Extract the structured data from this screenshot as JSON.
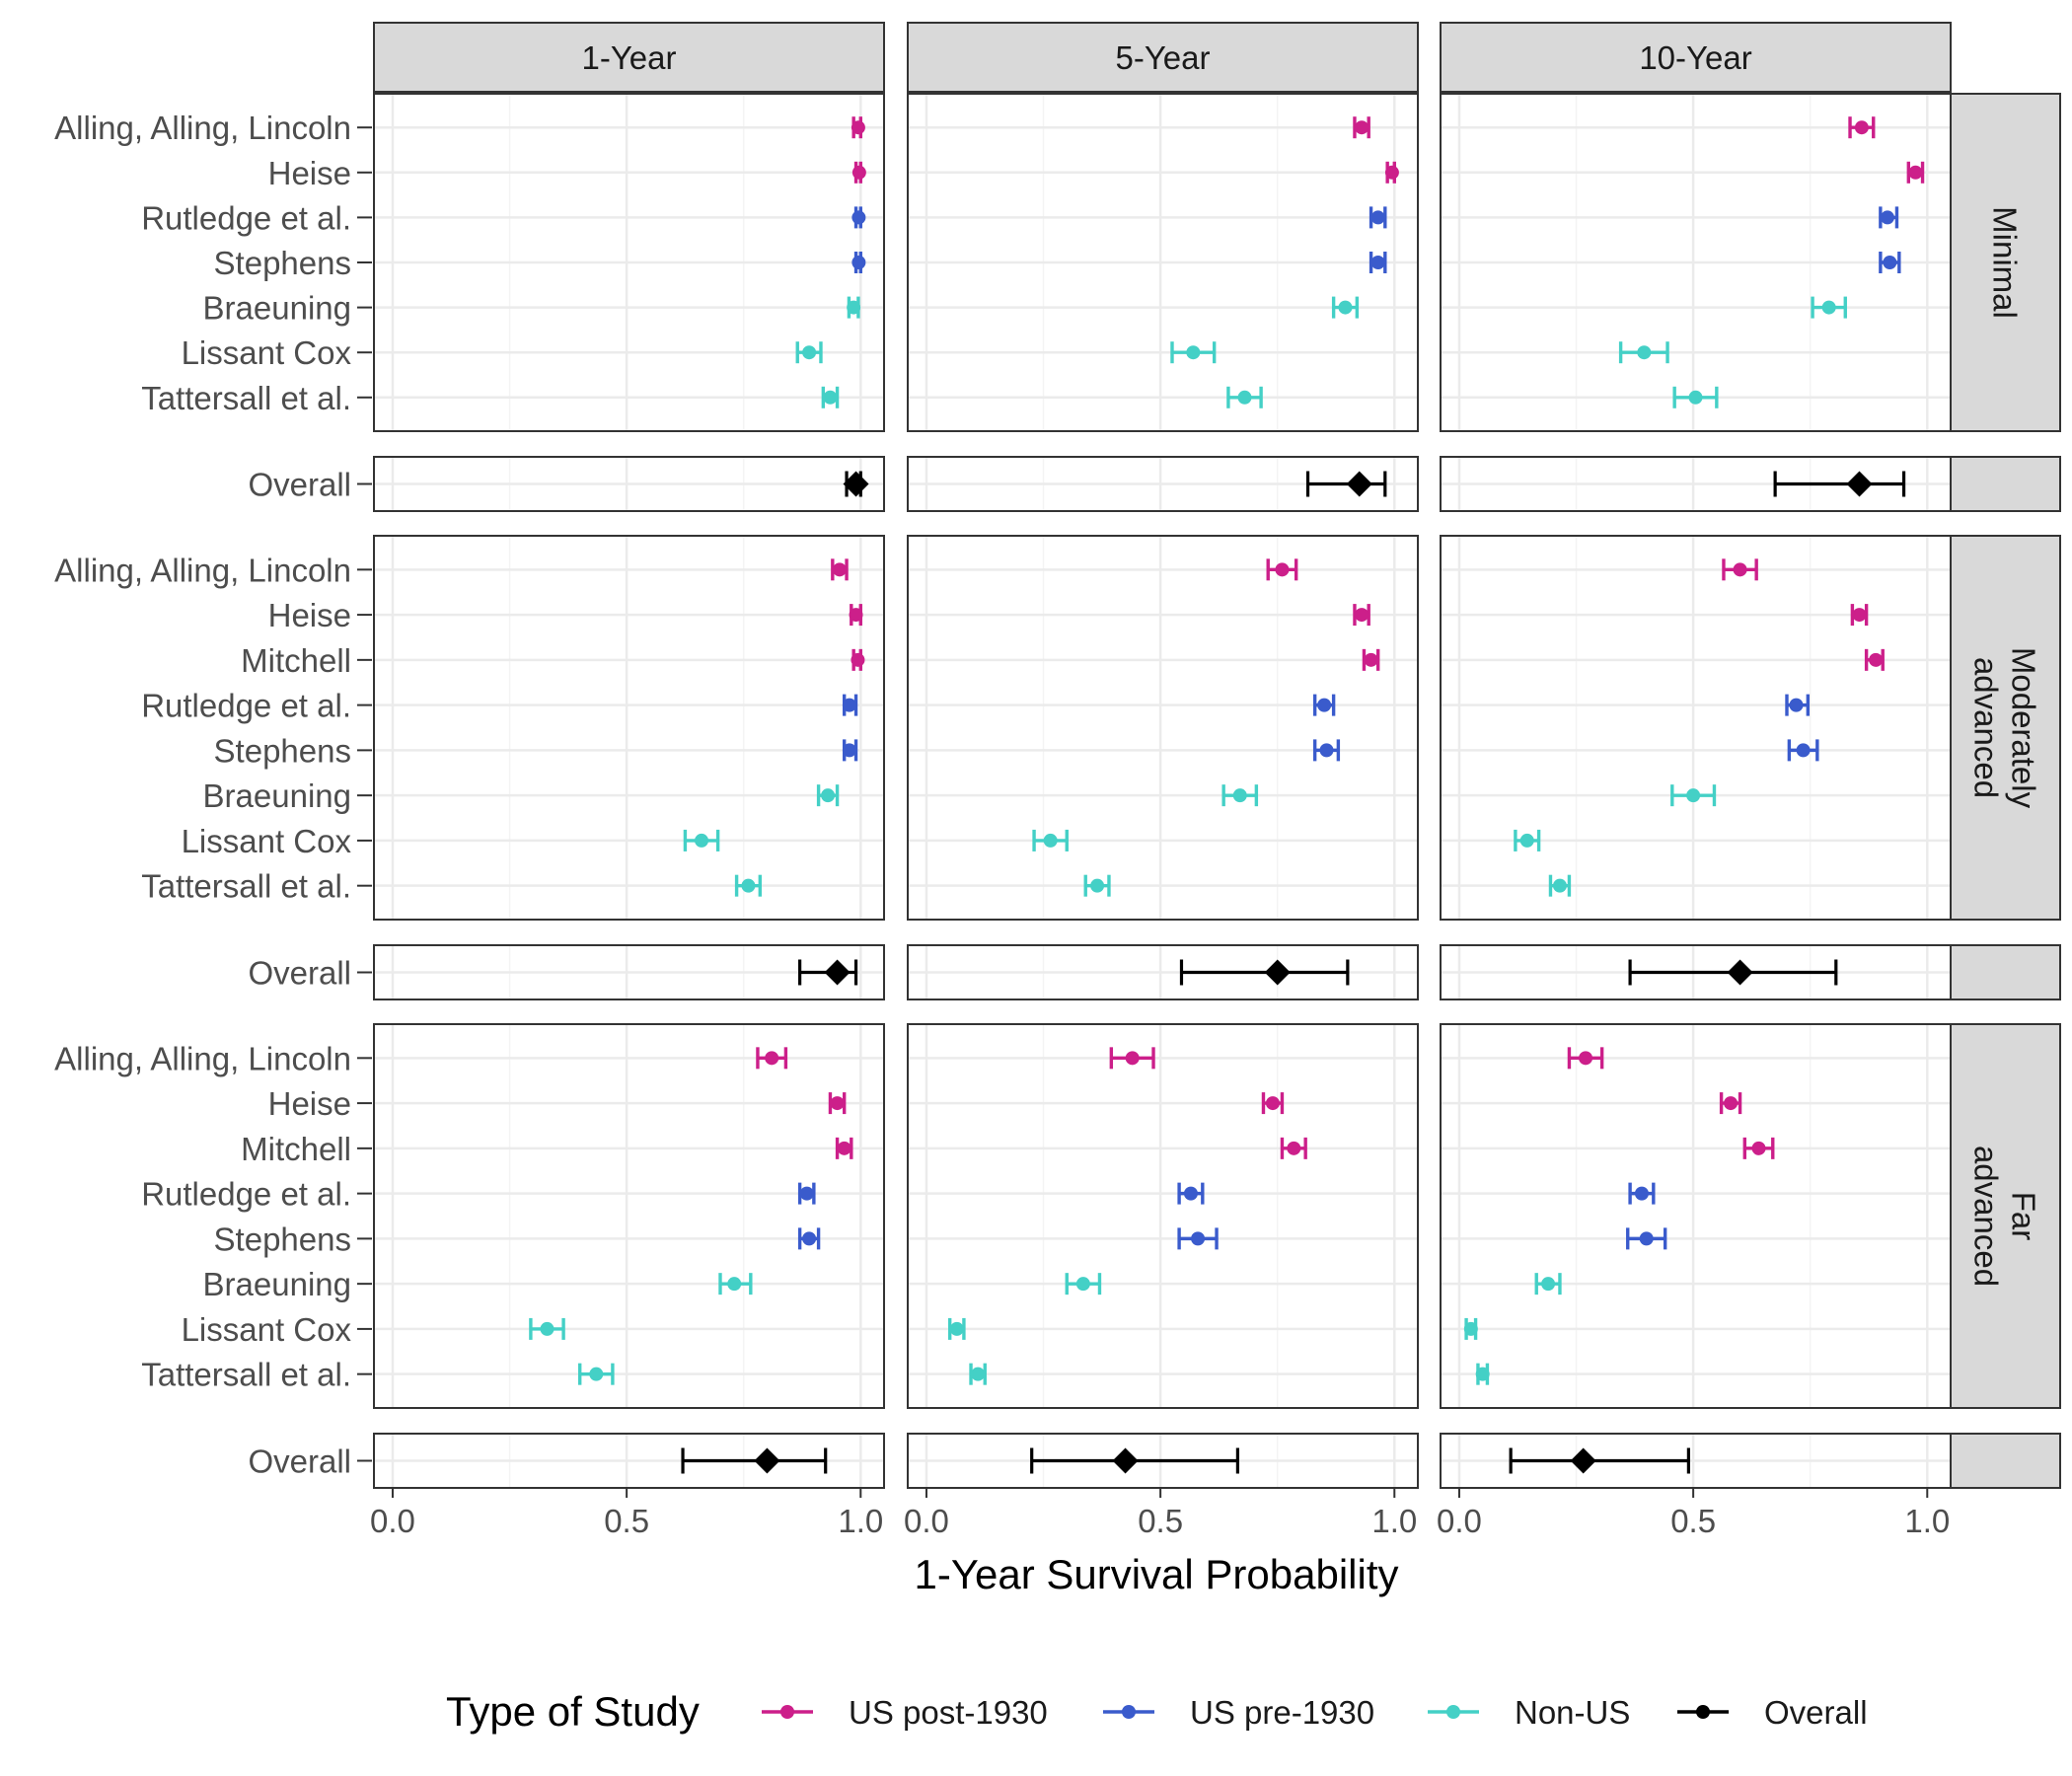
{
  "chart_data": {
    "type": "forest",
    "xlabel": "1-Year Survival Probability",
    "xlim": [
      -0.04,
      1.05
    ],
    "xticks": [
      "0.0",
      "0.5",
      "1.0"
    ],
    "xtick_values": [
      0,
      0.5,
      1.0
    ],
    "grid": true,
    "columns": [
      "1-Year",
      "5-Year",
      "10-Year"
    ],
    "legend": {
      "title": "Type of Study",
      "position": "bottom",
      "items": [
        {
          "label": "US post-1930",
          "color": "#cc1f8a"
        },
        {
          "label": "US pre-1930",
          "color": "#3a5bcc"
        },
        {
          "label": "Non-US",
          "color": "#44d0c6"
        },
        {
          "label": "Overall",
          "color": "#000000"
        }
      ]
    },
    "colors": {
      "US post-1930": "#cc1f8a",
      "US pre-1930": "#3a5bcc",
      "Non-US": "#44d0c6",
      "Overall": "#000000"
    },
    "rows": [
      {
        "label": "Minimal",
        "studies": [
          {
            "name": "Alling, Alling, Lincoln",
            "type": "US post-1930",
            "values": [
              {
                "est": 0.995,
                "lo": 0.985,
                "hi": 1.0
              },
              {
                "est": 0.93,
                "lo": 0.915,
                "hi": 0.945
              },
              {
                "est": 0.86,
                "lo": 0.835,
                "hi": 0.885
              }
            ]
          },
          {
            "name": "Heise",
            "type": "US post-1930",
            "values": [
              {
                "est": 0.997,
                "lo": 0.99,
                "hi": 1.0
              },
              {
                "est": 0.995,
                "lo": 0.985,
                "hi": 1.0
              },
              {
                "est": 0.975,
                "lo": 0.96,
                "hi": 0.99
              }
            ]
          },
          {
            "name": "Rutledge et al.",
            "type": "US pre-1930",
            "values": [
              {
                "est": 0.996,
                "lo": 0.99,
                "hi": 1.0
              },
              {
                "est": 0.965,
                "lo": 0.95,
                "hi": 0.98
              },
              {
                "est": 0.915,
                "lo": 0.9,
                "hi": 0.935
              }
            ]
          },
          {
            "name": "Stephens",
            "type": "US pre-1930",
            "values": [
              {
                "est": 0.996,
                "lo": 0.99,
                "hi": 1.0
              },
              {
                "est": 0.965,
                "lo": 0.95,
                "hi": 0.98
              },
              {
                "est": 0.92,
                "lo": 0.9,
                "hi": 0.94
              }
            ]
          },
          {
            "name": "Braeuning",
            "type": "Non-US",
            "values": [
              {
                "est": 0.985,
                "lo": 0.975,
                "hi": 0.995
              },
              {
                "est": 0.895,
                "lo": 0.87,
                "hi": 0.92
              },
              {
                "est": 0.79,
                "lo": 0.755,
                "hi": 0.825
              }
            ]
          },
          {
            "name": "Lissant Cox",
            "type": "Non-US",
            "values": [
              {
                "est": 0.89,
                "lo": 0.865,
                "hi": 0.915
              },
              {
                "est": 0.57,
                "lo": 0.525,
                "hi": 0.615
              },
              {
                "est": 0.395,
                "lo": 0.345,
                "hi": 0.445
              }
            ]
          },
          {
            "name": "Tattersall et al.",
            "type": "Non-US",
            "values": [
              {
                "est": 0.935,
                "lo": 0.92,
                "hi": 0.95
              },
              {
                "est": 0.68,
                "lo": 0.645,
                "hi": 0.715
              },
              {
                "est": 0.505,
                "lo": 0.46,
                "hi": 0.55
              }
            ]
          }
        ],
        "overall": [
          {
            "est": 0.99,
            "lo": 0.97,
            "hi": 1.0
          },
          {
            "est": 0.925,
            "lo": 0.815,
            "hi": 0.98
          },
          {
            "est": 0.855,
            "lo": 0.675,
            "hi": 0.95
          }
        ]
      },
      {
        "label": "Moderately advanced",
        "label_lines": [
          "Moderately",
          "advanced"
        ],
        "studies": [
          {
            "name": "Alling, Alling, Lincoln",
            "type": "US post-1930",
            "values": [
              {
                "est": 0.955,
                "lo": 0.94,
                "hi": 0.97
              },
              {
                "est": 0.76,
                "lo": 0.73,
                "hi": 0.79
              },
              {
                "est": 0.6,
                "lo": 0.565,
                "hi": 0.635
              }
            ]
          },
          {
            "name": "Heise",
            "type": "US post-1930",
            "values": [
              {
                "est": 0.99,
                "lo": 0.98,
                "hi": 1.0
              },
              {
                "est": 0.93,
                "lo": 0.915,
                "hi": 0.945
              },
              {
                "est": 0.855,
                "lo": 0.84,
                "hi": 0.87
              }
            ]
          },
          {
            "name": "Mitchell",
            "type": "US post-1930",
            "values": [
              {
                "est": 0.994,
                "lo": 0.985,
                "hi": 1.0
              },
              {
                "est": 0.95,
                "lo": 0.935,
                "hi": 0.965
              },
              {
                "est": 0.89,
                "lo": 0.87,
                "hi": 0.905
              }
            ]
          },
          {
            "name": "Rutledge et al.",
            "type": "US pre-1930",
            "values": [
              {
                "est": 0.976,
                "lo": 0.965,
                "hi": 0.99
              },
              {
                "est": 0.85,
                "lo": 0.83,
                "hi": 0.87
              },
              {
                "est": 0.72,
                "lo": 0.7,
                "hi": 0.745
              }
            ]
          },
          {
            "name": "Stephens",
            "type": "US pre-1930",
            "values": [
              {
                "est": 0.976,
                "lo": 0.965,
                "hi": 0.99
              },
              {
                "est": 0.855,
                "lo": 0.83,
                "hi": 0.88
              },
              {
                "est": 0.735,
                "lo": 0.705,
                "hi": 0.765
              }
            ]
          },
          {
            "name": "Braeuning",
            "type": "Non-US",
            "values": [
              {
                "est": 0.93,
                "lo": 0.91,
                "hi": 0.95
              },
              {
                "est": 0.67,
                "lo": 0.635,
                "hi": 0.705
              },
              {
                "est": 0.5,
                "lo": 0.455,
                "hi": 0.545
              }
            ]
          },
          {
            "name": "Lissant Cox",
            "type": "Non-US",
            "values": [
              {
                "est": 0.66,
                "lo": 0.625,
                "hi": 0.695
              },
              {
                "est": 0.265,
                "lo": 0.23,
                "hi": 0.3
              },
              {
                "est": 0.145,
                "lo": 0.12,
                "hi": 0.17
              }
            ]
          },
          {
            "name": "Tattersall et al.",
            "type": "Non-US",
            "values": [
              {
                "est": 0.76,
                "lo": 0.735,
                "hi": 0.785
              },
              {
                "est": 0.365,
                "lo": 0.34,
                "hi": 0.39
              },
              {
                "est": 0.215,
                "lo": 0.195,
                "hi": 0.235
              }
            ]
          }
        ],
        "overall": [
          {
            "est": 0.95,
            "lo": 0.87,
            "hi": 0.99
          },
          {
            "est": 0.75,
            "lo": 0.545,
            "hi": 0.9
          },
          {
            "est": 0.6,
            "lo": 0.365,
            "hi": 0.805
          }
        ]
      },
      {
        "label": "Far advanced",
        "label_lines": [
          "Far",
          "advanced"
        ],
        "studies": [
          {
            "name": "Alling, Alling, Lincoln",
            "type": "US post-1930",
            "values": [
              {
                "est": 0.81,
                "lo": 0.78,
                "hi": 0.84
              },
              {
                "est": 0.44,
                "lo": 0.395,
                "hi": 0.485
              },
              {
                "est": 0.27,
                "lo": 0.235,
                "hi": 0.305
              }
            ]
          },
          {
            "name": "Heise",
            "type": "US post-1930",
            "values": [
              {
                "est": 0.95,
                "lo": 0.935,
                "hi": 0.965
              },
              {
                "est": 0.74,
                "lo": 0.72,
                "hi": 0.76
              },
              {
                "est": 0.58,
                "lo": 0.56,
                "hi": 0.6
              }
            ]
          },
          {
            "name": "Mitchell",
            "type": "US post-1930",
            "values": [
              {
                "est": 0.965,
                "lo": 0.95,
                "hi": 0.98
              },
              {
                "est": 0.785,
                "lo": 0.76,
                "hi": 0.81
              },
              {
                "est": 0.64,
                "lo": 0.61,
                "hi": 0.67
              }
            ]
          },
          {
            "name": "Rutledge et al.",
            "type": "US pre-1930",
            "values": [
              {
                "est": 0.885,
                "lo": 0.87,
                "hi": 0.9
              },
              {
                "est": 0.565,
                "lo": 0.54,
                "hi": 0.59
              },
              {
                "est": 0.39,
                "lo": 0.365,
                "hi": 0.415
              }
            ]
          },
          {
            "name": "Stephens",
            "type": "US pre-1930",
            "values": [
              {
                "est": 0.89,
                "lo": 0.87,
                "hi": 0.91
              },
              {
                "est": 0.58,
                "lo": 0.54,
                "hi": 0.62
              },
              {
                "est": 0.4,
                "lo": 0.36,
                "hi": 0.44
              }
            ]
          },
          {
            "name": "Braeuning",
            "type": "Non-US",
            "values": [
              {
                "est": 0.73,
                "lo": 0.7,
                "hi": 0.765
              },
              {
                "est": 0.335,
                "lo": 0.3,
                "hi": 0.37
              },
              {
                "est": 0.19,
                "lo": 0.165,
                "hi": 0.215
              }
            ]
          },
          {
            "name": "Lissant Cox",
            "type": "Non-US",
            "values": [
              {
                "est": 0.33,
                "lo": 0.295,
                "hi": 0.365
              },
              {
                "est": 0.065,
                "lo": 0.05,
                "hi": 0.08
              },
              {
                "est": 0.025,
                "lo": 0.015,
                "hi": 0.035
              }
            ]
          },
          {
            "name": "Tattersall et al.",
            "type": "Non-US",
            "values": [
              {
                "est": 0.435,
                "lo": 0.4,
                "hi": 0.47
              },
              {
                "est": 0.11,
                "lo": 0.095,
                "hi": 0.125
              },
              {
                "est": 0.05,
                "lo": 0.04,
                "hi": 0.06
              }
            ]
          }
        ],
        "overall": [
          {
            "est": 0.8,
            "lo": 0.62,
            "hi": 0.925
          },
          {
            "est": 0.425,
            "lo": 0.225,
            "hi": 0.665
          },
          {
            "est": 0.265,
            "lo": 0.11,
            "hi": 0.49
          }
        ]
      }
    ],
    "overall_label": "Overall"
  }
}
